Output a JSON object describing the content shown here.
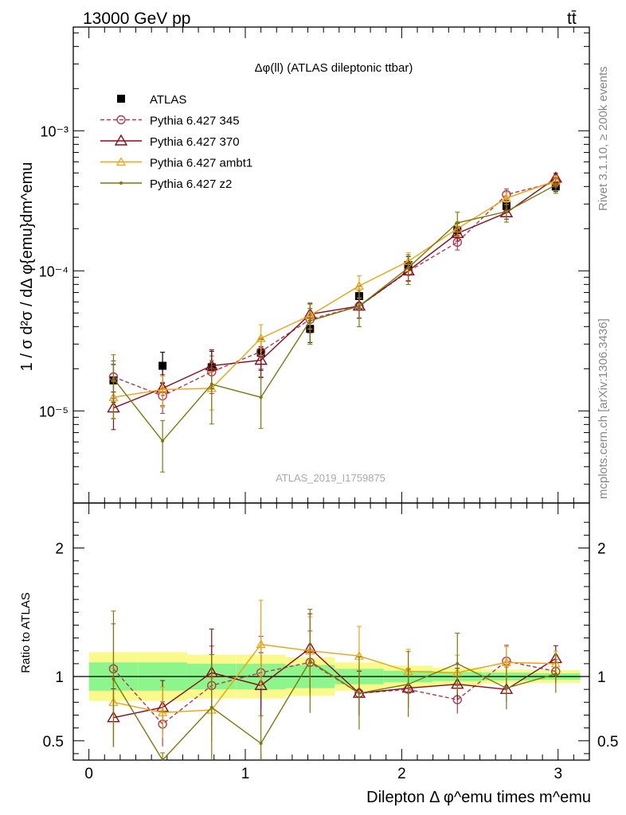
{
  "header": {
    "left": "13000 GeV pp",
    "right": "tt̄"
  },
  "side_labels": {
    "rivet": "Rivet 3.1.10, ≥ 200k events",
    "mcplots": "mcplots.cern.ch [arXiv:1306.3436]"
  },
  "watermark": "ATLAS_2019_I1759875",
  "colors": {
    "atlas": "#000000",
    "p345": "#b03a50",
    "p370": "#8b0a1c",
    "ambt1": "#f0a30a",
    "z2": "#7a7a0a",
    "band_inner": "#8cf58c",
    "band_outer": "#fafa8c"
  },
  "chart_data": [
    {
      "type": "scatter",
      "title": "Δφ(ll) (ATLAS dileptonic ttbar)",
      "ylabel": "1 / σ  d²σ / dΔ φ{emu}dm^emu",
      "yscale": "log",
      "ylim": [
        2.2e-06,
        0.0055
      ],
      "xlim": [
        -0.1,
        3.2
      ],
      "y_tick_labels": [
        "10⁻⁵",
        "10⁻⁴",
        "10⁻³"
      ],
      "x": [
        0.157,
        0.471,
        0.785,
        1.1,
        1.414,
        1.728,
        2.042,
        2.356,
        2.67,
        2.985
      ],
      "series": [
        {
          "name": "ATLAS",
          "marker": "square",
          "values": [
            1.65e-05,
            2.1e-05,
            2.05e-05,
            2.6e-05,
            3.85e-05,
            6.6e-05,
            0.00011,
            0.000195,
            0.00029,
            0.0004
          ]
        },
        {
          "name": "Pythia 6.427 345",
          "marker": "circle",
          "values": [
            1.75e-05,
            1.28e-05,
            1.9e-05,
            2.65e-05,
            4.5e-05,
            5.6e-05,
            9.9e-05,
            0.00016,
            0.00035,
            0.00043
          ]
        },
        {
          "name": "Pythia 6.427 370",
          "marker": "triangle",
          "values": [
            1.05e-05,
            1.45e-05,
            2.1e-05,
            2.3e-05,
            4.9e-05,
            5.6e-05,
            0.0001,
            0.000185,
            0.00026,
            0.00046
          ]
        },
        {
          "name": "Pythia 6.427 ambt1",
          "marker": "small-triangle",
          "values": [
            1.25e-05,
            1.42e-05,
            1.45e-05,
            3.3e-05,
            4.8e-05,
            7.8e-05,
            0.000117,
            0.0002,
            0.00033,
            0.00044
          ]
        },
        {
          "name": "Pythia 6.427 z2",
          "marker": "dot",
          "values": [
            1.7e-05,
            6.1e-06,
            1.55e-05,
            1.25e-05,
            4.4e-05,
            5.6e-05,
            0.000105,
            0.00022,
            0.000265,
            0.00041
          ]
        }
      ]
    },
    {
      "type": "scatter",
      "ylabel": "Ratio to ATLAS",
      "xlabel": "Dilepton Δ φ^emu times m^emu",
      "ylim": [
        0.35,
        2.35
      ],
      "xlim": [
        -0.1,
        3.2
      ],
      "y_tick_labels": [
        "0.5",
        "1",
        "2"
      ],
      "x_tick_labels": [
        "0",
        "1",
        "2",
        "3"
      ],
      "x": [
        0.157,
        0.471,
        0.785,
        1.1,
        1.414,
        1.728,
        2.042,
        2.356,
        2.67,
        2.985
      ],
      "series": [
        {
          "name": "Pythia 6.427 345",
          "values": [
            1.06,
            0.63,
            0.93,
            1.03,
            1.11,
            0.87,
            0.9,
            0.82,
            1.12,
            1.04
          ]
        },
        {
          "name": "Pythia 6.427 370",
          "values": [
            0.68,
            0.76,
            1.03,
            0.93,
            1.22,
            0.87,
            0.91,
            0.94,
            0.9,
            1.14
          ]
        },
        {
          "name": "Pythia 6.427 ambt1",
          "values": [
            0.8,
            0.72,
            0.74,
            1.25,
            1.2,
            1.16,
            1.04,
            1.03,
            1.11,
            1.1
          ]
        },
        {
          "name": "Pythia 6.427 z2",
          "values": [
            0.98,
            0.28,
            0.76,
            0.48,
            1.12,
            0.87,
            0.94,
            1.1,
            0.91,
            1.02
          ]
        }
      ]
    }
  ]
}
